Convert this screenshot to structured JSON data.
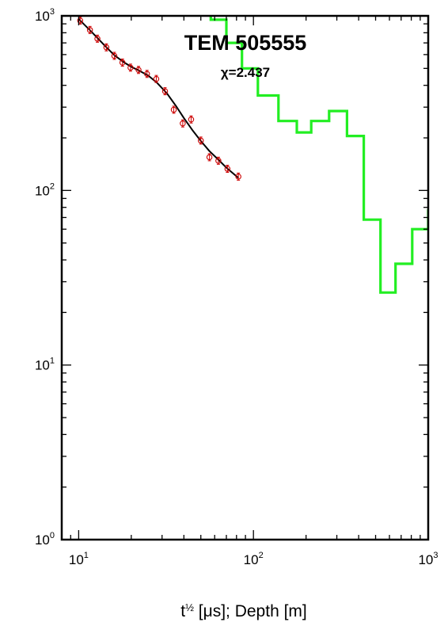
{
  "chart_data": {
    "type": "line",
    "title": "TEM 505555",
    "subtitle": "χ=2.437",
    "xlabel": {
      "t_base": "t",
      "t_exp": "½",
      "rest": " [μs]; Depth [m]"
    },
    "ylabel": "",
    "x_scale": "log",
    "y_scale": "log",
    "xlim": [
      8,
      1000
    ],
    "ylim": [
      1,
      1000
    ],
    "x_ticks": [
      {
        "base": "10",
        "exp": "1",
        "value": 10
      },
      {
        "base": "10",
        "exp": "2",
        "value": 100
      },
      {
        "base": "10",
        "exp": "3",
        "value": 1000
      }
    ],
    "y_ticks": [
      {
        "base": "10",
        "exp": "0",
        "value": 1
      },
      {
        "base": "10",
        "exp": "1",
        "value": 10
      },
      {
        "base": "10",
        "exp": "2",
        "value": 100
      },
      {
        "base": "10",
        "exp": "3",
        "value": 1000
      }
    ],
    "grid": false,
    "series": [
      {
        "kind": "observed",
        "marker": "circle-errorbar",
        "color": "#cc0000",
        "points": [
          {
            "x": 10.2,
            "y": 940
          },
          {
            "x": 11.6,
            "y": 830
          },
          {
            "x": 12.8,
            "y": 740
          },
          {
            "x": 14.4,
            "y": 660
          },
          {
            "x": 16.0,
            "y": 590
          },
          {
            "x": 17.8,
            "y": 540
          },
          {
            "x": 19.8,
            "y": 505
          },
          {
            "x": 22.0,
            "y": 490
          },
          {
            "x": 24.6,
            "y": 465
          },
          {
            "x": 27.8,
            "y": 435
          },
          {
            "x": 31.2,
            "y": 370
          },
          {
            "x": 35.0,
            "y": 290
          },
          {
            "x": 39.4,
            "y": 242
          },
          {
            "x": 44.0,
            "y": 255
          },
          {
            "x": 50.0,
            "y": 193
          },
          {
            "x": 56.0,
            "y": 155
          },
          {
            "x": 63.0,
            "y": 148
          },
          {
            "x": 71.0,
            "y": 133
          },
          {
            "x": 82.0,
            "y": 120
          }
        ]
      },
      {
        "kind": "model-response",
        "color": "#000000",
        "points": [
          {
            "x": 10.0,
            "y": 960
          },
          {
            "x": 12.0,
            "y": 800
          },
          {
            "x": 14.0,
            "y": 680
          },
          {
            "x": 16.0,
            "y": 595
          },
          {
            "x": 18.0,
            "y": 545
          },
          {
            "x": 20.0,
            "y": 510
          },
          {
            "x": 22.0,
            "y": 488
          },
          {
            "x": 25.0,
            "y": 455
          },
          {
            "x": 28.0,
            "y": 415
          },
          {
            "x": 32.0,
            "y": 360
          },
          {
            "x": 36.0,
            "y": 305
          },
          {
            "x": 40.0,
            "y": 260
          },
          {
            "x": 45.0,
            "y": 220
          },
          {
            "x": 50.0,
            "y": 192
          },
          {
            "x": 56.0,
            "y": 168
          },
          {
            "x": 63.0,
            "y": 150
          },
          {
            "x": 70.0,
            "y": 135
          },
          {
            "x": 82.0,
            "y": 118
          }
        ]
      },
      {
        "kind": "resistivity-model",
        "color": "#22ee22",
        "points": [
          {
            "x": 57,
            "y": 1000
          },
          {
            "x": 57,
            "y": 950
          },
          {
            "x": 70,
            "y": 950
          },
          {
            "x": 70,
            "y": 700
          },
          {
            "x": 86,
            "y": 700
          },
          {
            "x": 86,
            "y": 500
          },
          {
            "x": 106,
            "y": 500
          },
          {
            "x": 106,
            "y": 350
          },
          {
            "x": 139,
            "y": 350
          },
          {
            "x": 139,
            "y": 250
          },
          {
            "x": 177,
            "y": 250
          },
          {
            "x": 177,
            "y": 215
          },
          {
            "x": 214,
            "y": 215
          },
          {
            "x": 214,
            "y": 250
          },
          {
            "x": 271,
            "y": 250
          },
          {
            "x": 271,
            "y": 285
          },
          {
            "x": 343,
            "y": 285
          },
          {
            "x": 343,
            "y": 205
          },
          {
            "x": 428,
            "y": 205
          },
          {
            "x": 428,
            "y": 68
          },
          {
            "x": 533,
            "y": 68
          },
          {
            "x": 533,
            "y": 26
          },
          {
            "x": 650,
            "y": 26
          },
          {
            "x": 650,
            "y": 38
          },
          {
            "x": 810,
            "y": 38
          },
          {
            "x": 810,
            "y": 60
          },
          {
            "x": 1000,
            "y": 60
          },
          {
            "x": 1000,
            "y": 78
          }
        ]
      }
    ]
  }
}
